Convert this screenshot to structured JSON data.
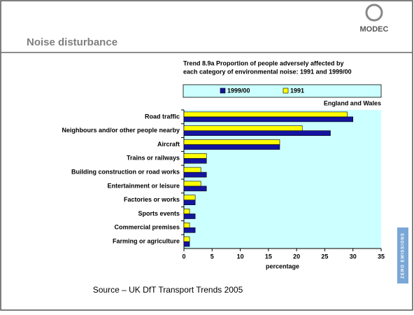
{
  "header": {
    "title": "Noise disturbance",
    "logo": "MODEC"
  },
  "side_label": "ZERO EMISSIONS",
  "source": "Source – UK DfT Transport Trends 2005",
  "chart_data": {
    "type": "barh",
    "title": [
      "Trend 8.9a Proportion of people adversely affected by",
      "each category of environmental noise: 1991 and 1999/00"
    ],
    "subtitle": "England and Wales",
    "xlabel": "percentage",
    "categories": [
      "Road traffic",
      "Neighbours and/or other people nearby",
      "Aircraft",
      "Trains or railways",
      "Building construction or road works",
      "Entertainment or leisure",
      "Factories or works",
      "Sports events",
      "Commercial premises",
      "Farming or agriculture"
    ],
    "series": [
      {
        "name": "1999/00",
        "color": "#1414a0",
        "values": [
          30,
          26,
          17,
          4,
          4,
          4,
          2,
          2,
          2,
          1
        ]
      },
      {
        "name": "1991",
        "color": "#ffff00",
        "values": [
          29,
          21,
          17,
          4,
          3,
          3,
          2,
          1,
          1,
          1
        ]
      }
    ],
    "xlim": [
      0,
      35
    ],
    "xticks": [
      0,
      5,
      10,
      15,
      20,
      25,
      30,
      35
    ]
  }
}
